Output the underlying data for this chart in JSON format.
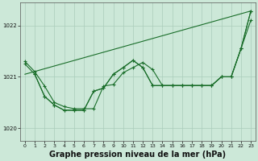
{
  "background_color": "#cce8d8",
  "grid_color": "#aaccbb",
  "line_color": "#1a6e2a",
  "xlabel": "Graphe pression niveau de la mer (hPa)",
  "xlabel_fontsize": 7,
  "ylabel_ticks": [
    1020,
    1021,
    1022
  ],
  "xlim": [
    -0.5,
    23.5
  ],
  "ylim": [
    1019.75,
    1022.45
  ],
  "x_ticks": [
    0,
    1,
    2,
    3,
    4,
    5,
    6,
    7,
    8,
    9,
    10,
    11,
    12,
    13,
    14,
    15,
    16,
    17,
    18,
    19,
    20,
    21,
    22,
    23
  ],
  "trend_x": [
    0,
    23
  ],
  "trend_y": [
    1021.05,
    1022.28
  ],
  "series_a_x": [
    0,
    1,
    2,
    3,
    4,
    5,
    6,
    7,
    8,
    9,
    10,
    11,
    12,
    13,
    14,
    15,
    16,
    17,
    18,
    19,
    20,
    21,
    22,
    23
  ],
  "series_a_y": [
    1021.25,
    1021.05,
    1020.62,
    1020.45,
    1020.35,
    1020.35,
    1020.35,
    1020.72,
    1020.78,
    1021.05,
    1021.18,
    1021.32,
    1021.18,
    1020.83,
    1020.83,
    1020.83,
    1020.83,
    1020.83,
    1020.83,
    1020.83,
    1021.0,
    1021.0,
    1021.55,
    1022.28
  ],
  "series_b_x": [
    1,
    2,
    3,
    4,
    5,
    6,
    7,
    8,
    9,
    10,
    11,
    12,
    13,
    14,
    15,
    16,
    17,
    18,
    19,
    20,
    21,
    22,
    23
  ],
  "series_b_y": [
    1021.05,
    1020.62,
    1020.45,
    1020.35,
    1020.35,
    1020.35,
    1020.72,
    1020.78,
    1021.05,
    1021.18,
    1021.32,
    1021.18,
    1020.83,
    1020.83,
    1020.83,
    1020.83,
    1020.83,
    1020.83,
    1020.83,
    1021.0,
    1021.0,
    1021.55,
    1022.28
  ],
  "series_c_x": [
    0,
    1,
    2,
    3,
    4,
    5,
    6,
    7,
    8,
    9,
    10,
    11,
    12,
    13,
    14,
    15,
    16,
    17,
    18,
    19,
    20,
    21,
    22,
    23
  ],
  "series_c_y": [
    1021.3,
    1021.1,
    1020.82,
    1020.5,
    1020.42,
    1020.38,
    1020.38,
    1020.38,
    1020.82,
    1020.85,
    1021.08,
    1021.18,
    1021.28,
    1021.14,
    1020.83,
    1020.83,
    1020.83,
    1020.83,
    1020.83,
    1020.83,
    1021.0,
    1021.0,
    1021.55,
    1022.1
  ]
}
